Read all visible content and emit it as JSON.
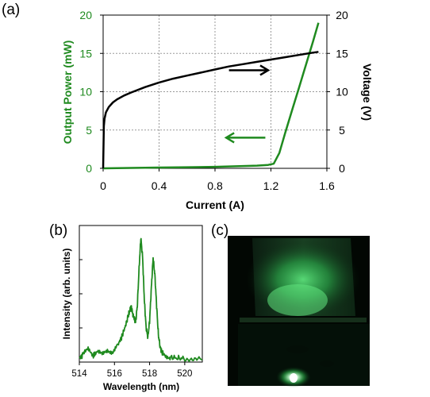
{
  "panels": {
    "a": "(a)",
    "b": "(b)",
    "c": "(c)"
  },
  "colors": {
    "power": "#1f8a1f",
    "voltage": "#000000",
    "grid": "#9a9a9a"
  },
  "chart_data": [
    {
      "type": "line",
      "panel": "(a)",
      "xlabel": "Current (A)",
      "ylabel": "Output Power (mW)",
      "y2label": "Voltage (V)",
      "xlim": [
        0,
        1.6
      ],
      "ylim": [
        0,
        20
      ],
      "y2lim": [
        0,
        20
      ],
      "xticks": [
        "0",
        "0.4",
        "0.8",
        "1.2",
        "1.6"
      ],
      "yticks": [
        "0",
        "5",
        "10",
        "15",
        "20"
      ],
      "y2ticks": [
        "0",
        "5",
        "10",
        "15",
        "20"
      ],
      "grid": true,
      "series": [
        {
          "axis": "left",
          "color": "#1f8a1f",
          "x": [
            0,
            0.2,
            0.4,
            0.6,
            0.8,
            1.0,
            1.1,
            1.18,
            1.22,
            1.26,
            1.3,
            1.35,
            1.4,
            1.45,
            1.5,
            1.54
          ],
          "y": [
            0,
            0.05,
            0.1,
            0.15,
            0.2,
            0.3,
            0.35,
            0.45,
            0.6,
            2.0,
            4.5,
            7.5,
            10.5,
            13.5,
            16.5,
            19.0
          ]
        },
        {
          "axis": "right",
          "color": "#000000",
          "x": [
            0,
            0.005,
            0.01,
            0.02,
            0.04,
            0.07,
            0.1,
            0.15,
            0.2,
            0.3,
            0.4,
            0.5,
            0.6,
            0.7,
            0.8,
            0.9,
            1.0,
            1.1,
            1.2,
            1.3,
            1.4,
            1.5,
            1.54
          ],
          "y": [
            0,
            5.5,
            6.5,
            7.3,
            8.0,
            8.6,
            9.0,
            9.5,
            9.9,
            10.6,
            11.2,
            11.7,
            12.1,
            12.5,
            12.9,
            13.3,
            13.6,
            13.9,
            14.2,
            14.5,
            14.8,
            15.1,
            15.2
          ]
        }
      ],
      "annotations": [
        {
          "type": "arrow",
          "direction": "right",
          "color": "#000000",
          "from": [
            0.9,
            12.8
          ],
          "to": [
            1.18,
            12.8
          ]
        },
        {
          "type": "arrow",
          "direction": "left",
          "color": "#1f8a1f",
          "from": [
            1.16,
            4.0
          ],
          "to": [
            0.88,
            4.0
          ]
        }
      ]
    },
    {
      "type": "line",
      "panel": "(b)",
      "xlabel": "Wavelength (nm)",
      "ylabel": "Intensity (arb. units)",
      "xlim": [
        514,
        521
      ],
      "xticks": [
        "514",
        "516",
        "518",
        "520"
      ],
      "ylim": [
        0,
        1.1
      ],
      "grid": false,
      "series": [
        {
          "color": "#1f8a1f",
          "x": [
            514.0,
            514.2,
            514.5,
            514.8,
            515.0,
            515.3,
            515.6,
            515.9,
            516.2,
            516.4,
            516.6,
            516.8,
            516.95,
            517.05,
            517.2,
            517.3,
            517.4,
            517.5,
            517.6,
            517.7,
            517.8,
            517.9,
            518.0,
            518.1,
            518.2,
            518.3,
            518.4,
            518.5,
            518.6,
            518.7,
            518.9,
            519.2,
            519.6,
            520.0,
            520.5,
            521.0
          ],
          "y": [
            0.03,
            0.06,
            0.1,
            0.05,
            0.08,
            0.06,
            0.1,
            0.08,
            0.14,
            0.2,
            0.28,
            0.38,
            0.45,
            0.38,
            0.32,
            0.45,
            0.75,
            1.0,
            0.85,
            0.5,
            0.28,
            0.2,
            0.33,
            0.6,
            0.84,
            0.7,
            0.45,
            0.22,
            0.12,
            0.08,
            0.05,
            0.04,
            0.03,
            0.03,
            0.02,
            0.02
          ]
        }
      ]
    }
  ]
}
